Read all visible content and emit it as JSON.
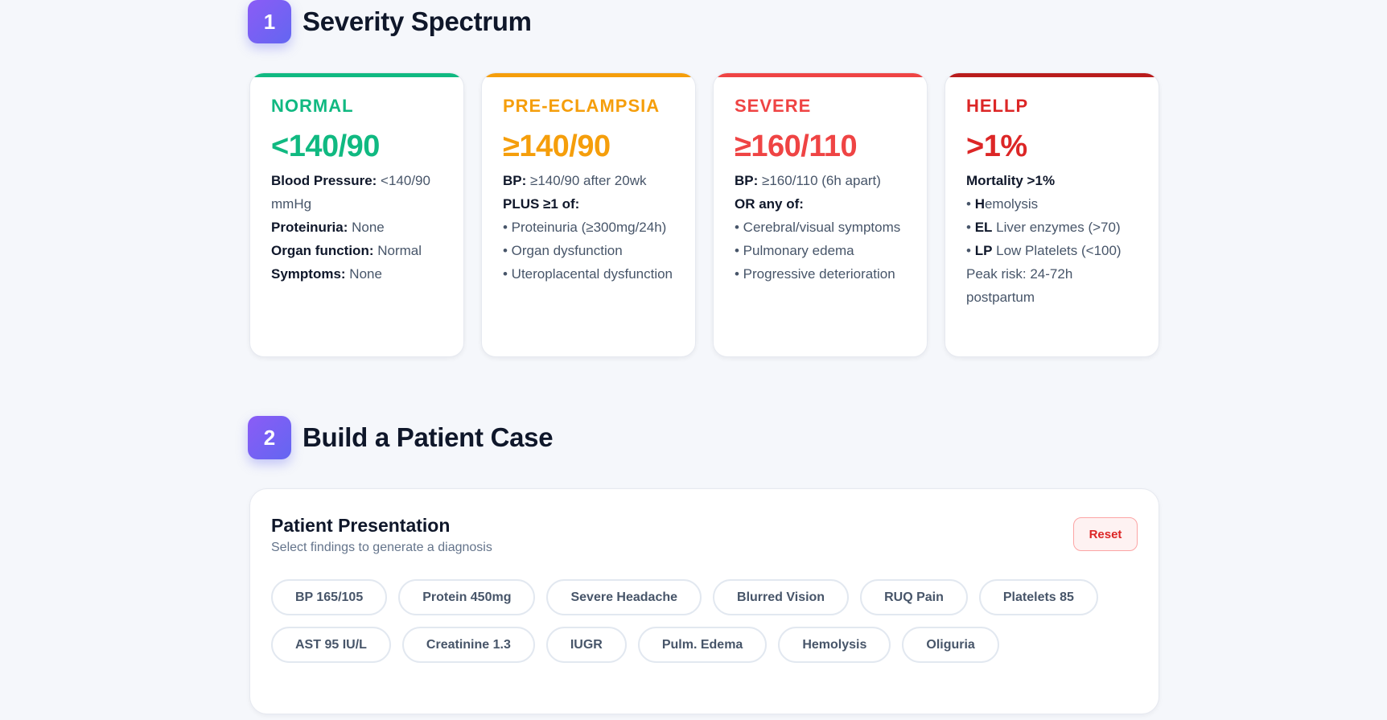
{
  "sections": [
    {
      "number": "1",
      "title": "Severity Spectrum"
    },
    {
      "number": "2",
      "title": "Build a Patient Case"
    }
  ],
  "cards": [
    {
      "label": "NORMAL",
      "value": "<140/90",
      "color": "#10b981",
      "lines": [
        {
          "bold": "Blood Pressure: ",
          "text": "<140/90 mmHg"
        },
        {
          "bold": "Proteinuria: ",
          "text": "None"
        },
        {
          "bold": "Organ function: ",
          "text": "Normal"
        },
        {
          "bold": "Symptoms: ",
          "text": "None"
        }
      ]
    },
    {
      "label": "PRE-ECLAMPSIA",
      "value": "≥140/90",
      "color": "#f59e0b",
      "lines": [
        {
          "bold": "BP: ",
          "text": "≥140/90 after 20wk"
        },
        {
          "bold": "PLUS ≥1 of:",
          "text": ""
        },
        {
          "bold": "",
          "text": "• Proteinuria (≥300mg/24h)"
        },
        {
          "bold": "",
          "text": "• Organ dysfunction"
        },
        {
          "bold": "",
          "text": "• Uteroplacental dysfunction"
        }
      ]
    },
    {
      "label": "SEVERE",
      "value": "≥160/110",
      "color": "#ef4444",
      "lines": [
        {
          "bold": "BP: ",
          "text": "≥160/110 (6h apart)"
        },
        {
          "bold": "OR any of:",
          "text": ""
        },
        {
          "bold": "",
          "text": "• Cerebral/visual symptoms"
        },
        {
          "bold": "",
          "text": "• Pulmonary edema"
        },
        {
          "bold": "",
          "text": "• Progressive deterioration"
        }
      ]
    },
    {
      "label": "HELLP",
      "value": ">1%",
      "color": "#dc2626",
      "bar_color": "#b91c1c",
      "lines": [
        {
          "bold": "Mortality >1%",
          "text": ""
        },
        {
          "prefix": "• ",
          "bold": "H",
          "text": "emolysis"
        },
        {
          "prefix": "• ",
          "bold": "EL",
          "text": " Liver enzymes (>70)"
        },
        {
          "prefix": "• ",
          "bold": "LP",
          "text": " Low Platelets (<100)"
        },
        {
          "bold": "",
          "text": "Peak risk: 24-72h postpartum"
        }
      ]
    }
  ],
  "panel": {
    "title": "Patient Presentation",
    "subtitle": "Select findings to generate a diagnosis",
    "reset_label": "Reset",
    "chips": [
      "BP 165/105",
      "Protein 450mg",
      "Severe Headache",
      "Blurred Vision",
      "RUQ Pain",
      "Platelets 85",
      "AST 95 IU/L",
      "Creatinine 1.3",
      "IUGR",
      "Pulm. Edema",
      "Hemolysis",
      "Oliguria"
    ]
  }
}
